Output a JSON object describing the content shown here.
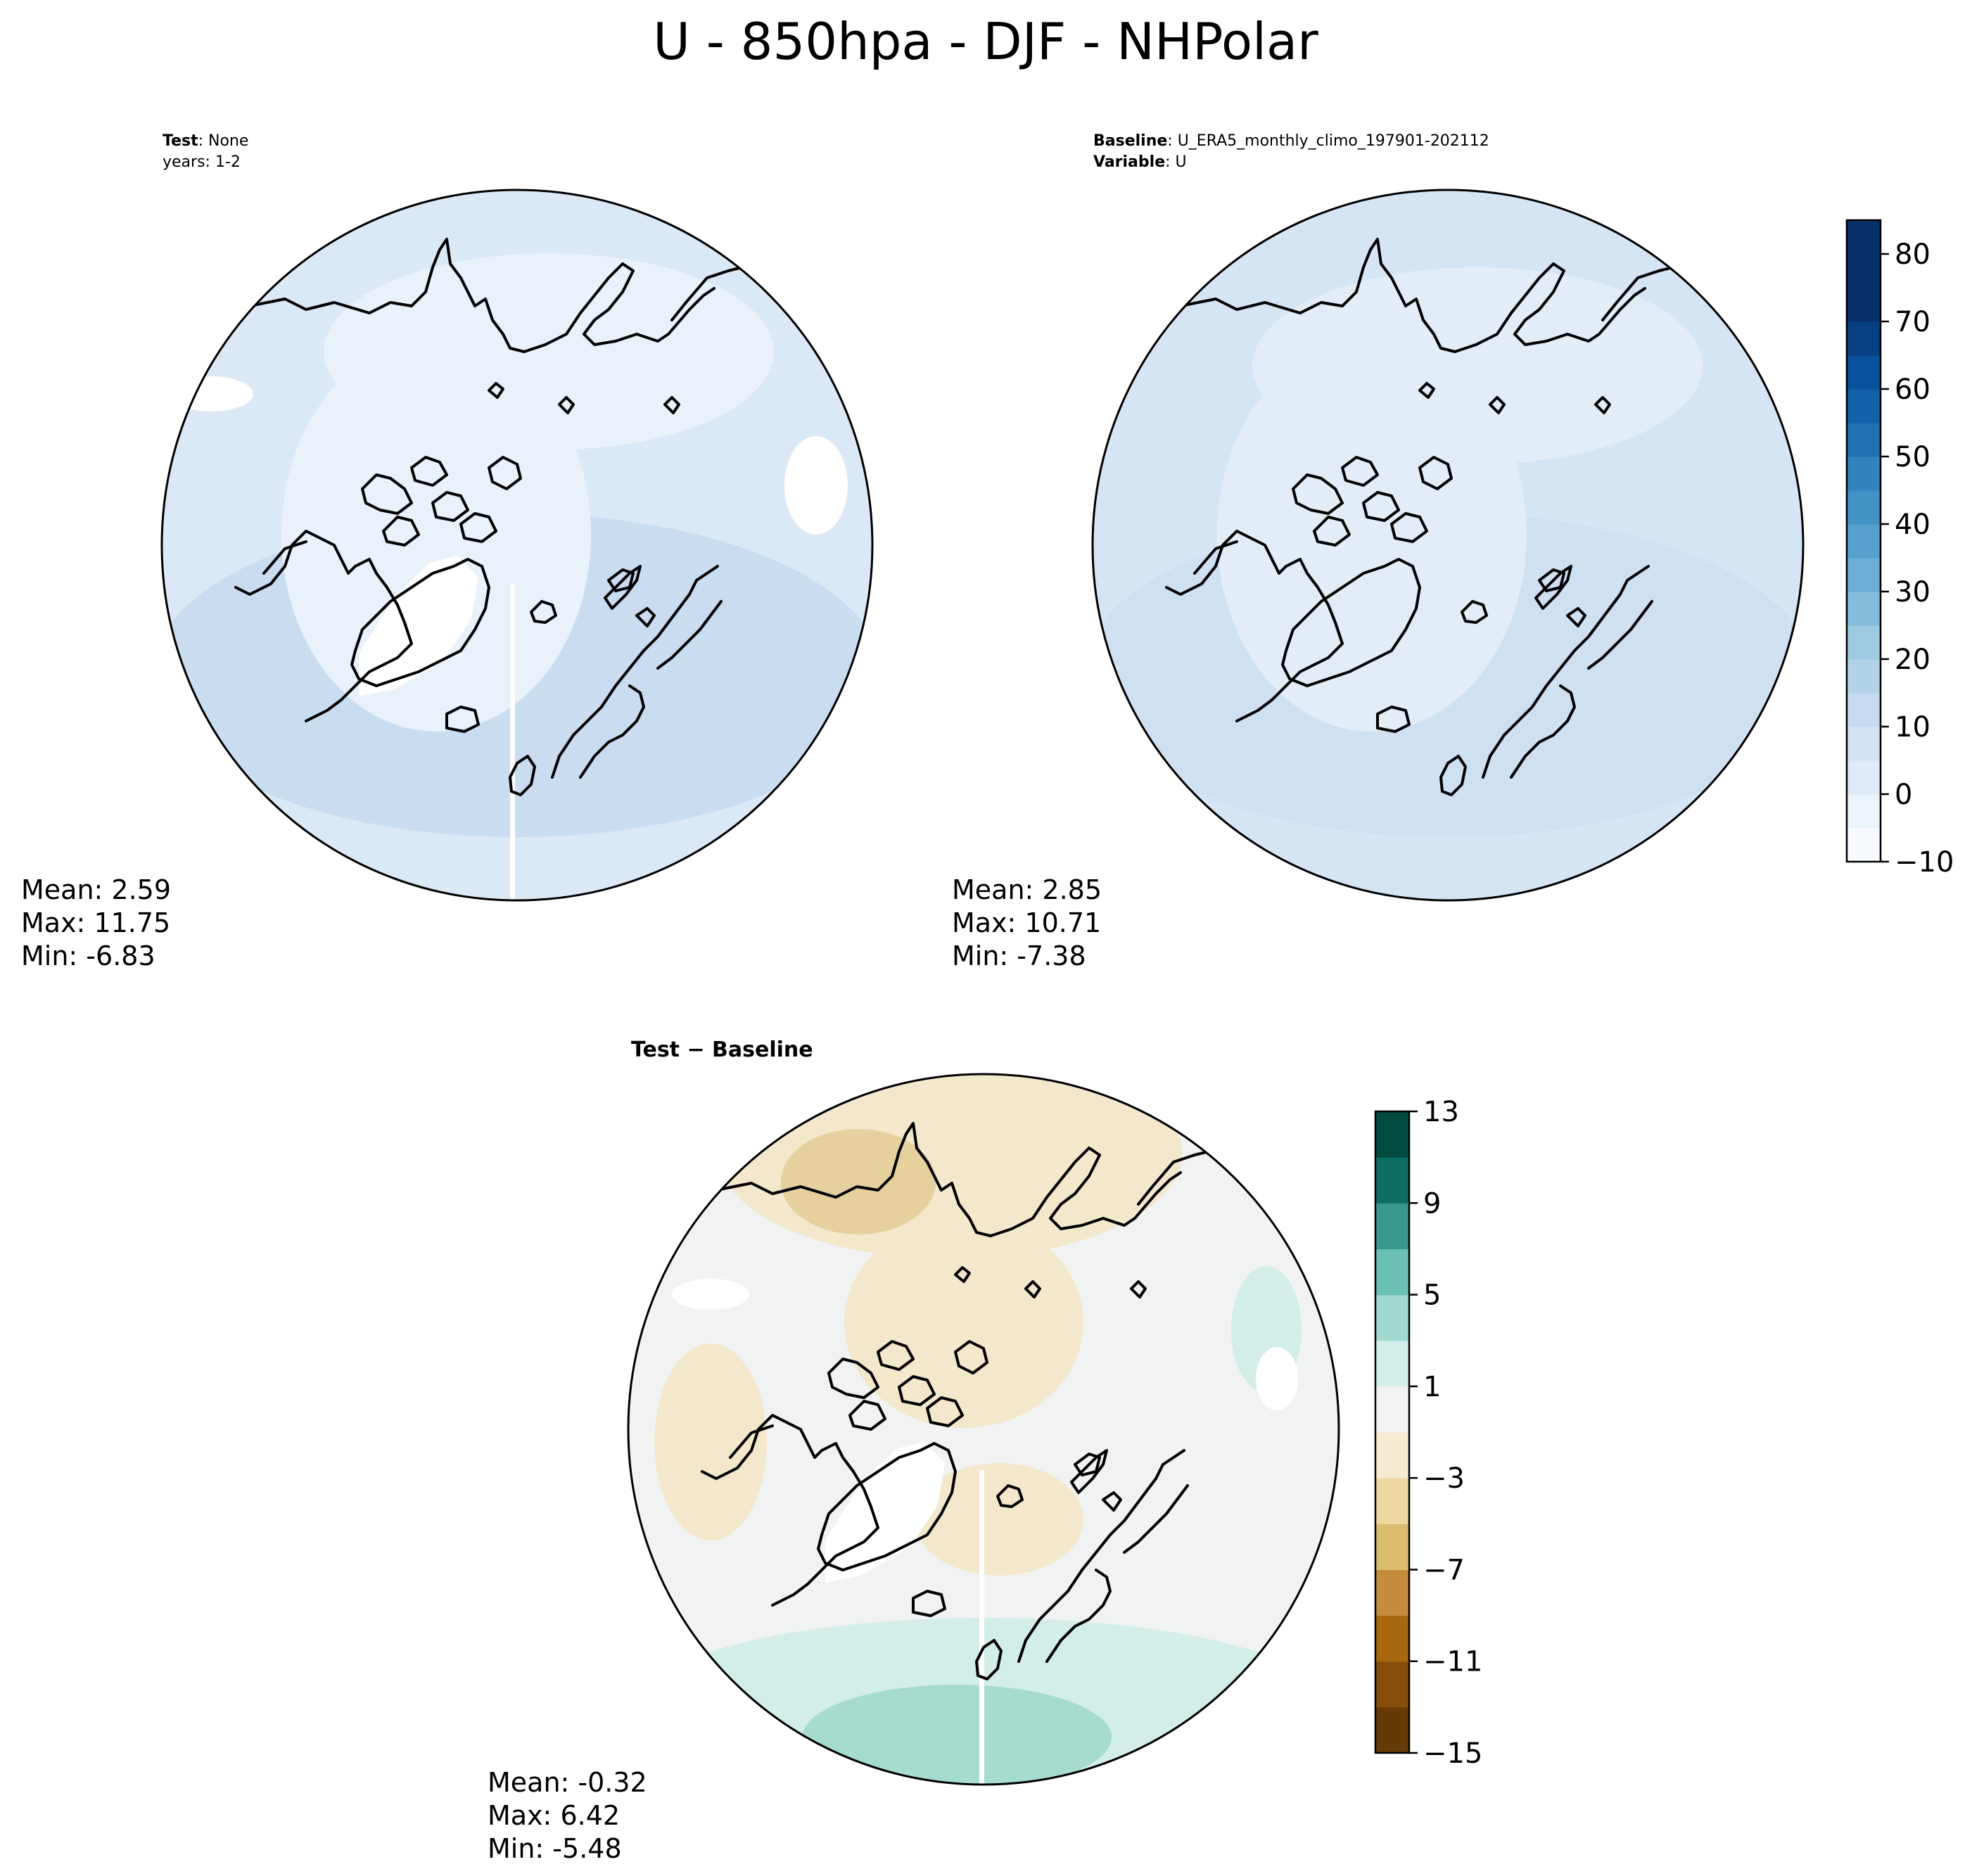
{
  "figure": {
    "title": "U - 850hpa - DJF - NHPolar"
  },
  "panels": {
    "test": {
      "header_line1_bold": "Test",
      "header_line1_rest": ": None",
      "header_line2": "years: 1-2",
      "mean": "Mean:  2.59",
      "max": "Max: 11.75",
      "min": "Min: -6.83"
    },
    "baseline": {
      "header_line1_bold": "Baseline",
      "header_line1_rest": ": U_ERA5_monthly_climo_197901-202112",
      "header_line2_bold": "Variable",
      "header_line2_rest": ": U",
      "mean": "Mean:  2.85",
      "max": "Max: 10.71",
      "min": "Min: -7.38"
    },
    "diff": {
      "header_bold": "Test − Baseline",
      "mean": "Mean: -0.32",
      "max": "Max:  6.42",
      "min": "Min: -5.48"
    }
  },
  "colorbars": {
    "main": {
      "cmap": "Blues",
      "range": [
        -10,
        85
      ],
      "levels": [
        -10,
        -5,
        0,
        5,
        10,
        15,
        20,
        25,
        30,
        35,
        40,
        45,
        50,
        55,
        60,
        65,
        70,
        75,
        80,
        85
      ],
      "tick_values": [
        -10,
        0,
        10,
        20,
        30,
        40,
        50,
        60,
        70,
        80
      ],
      "tick_labels": [
        "−10",
        "0",
        "10",
        "20",
        "30",
        "40",
        "50",
        "60",
        "70",
        "80"
      ],
      "colors": [
        "#f7fbff",
        "#ebf3fb",
        "#deebf7",
        "#d2e3f3",
        "#c6dbef",
        "#b2d2e8",
        "#9ecae1",
        "#84bcdb",
        "#6baed6",
        "#57a0ce",
        "#4292c6",
        "#3282be",
        "#2171b5",
        "#1361a9",
        "#08519c",
        "#084084",
        "#08306b",
        "#08306b",
        "#08306b"
      ]
    },
    "diff": {
      "cmap": "BrBG",
      "range": [
        -15,
        13
      ],
      "levels": [
        -15,
        -13,
        -11,
        -9,
        -7,
        -5,
        -3,
        -1,
        1,
        3,
        5,
        7,
        9,
        11,
        13
      ],
      "tick_values": [
        -15,
        -11,
        -7,
        -3,
        1,
        5,
        9,
        13
      ],
      "tick_labels": [
        "−15",
        "−11",
        "−7",
        "−3",
        "1",
        "5",
        "9",
        "13"
      ],
      "colors": [
        "#653a07",
        "#874e0b",
        "#a8680f",
        "#c48c3b",
        "#dcbc6f",
        "#ecd7a1",
        "#f5ebd0",
        "#f1f3f2",
        "#d3ede8",
        "#a0d9ce",
        "#6bbfb3",
        "#38978e",
        "#0d6f64",
        "#014c40"
      ]
    }
  },
  "map_fill_colors": {
    "ocean_base": "#dbe8f6",
    "ocean_light": "#e9f1fa",
    "ocean_dark": "#c9dcf0",
    "missing": "#ffffff",
    "diff_neutral": "#f1f3f2",
    "diff_tan": "#f3e7cc",
    "diff_tan_dark": "#e6d09e",
    "diff_teal_light": "#d3ede8",
    "diff_teal": "#a6dbd0"
  }
}
